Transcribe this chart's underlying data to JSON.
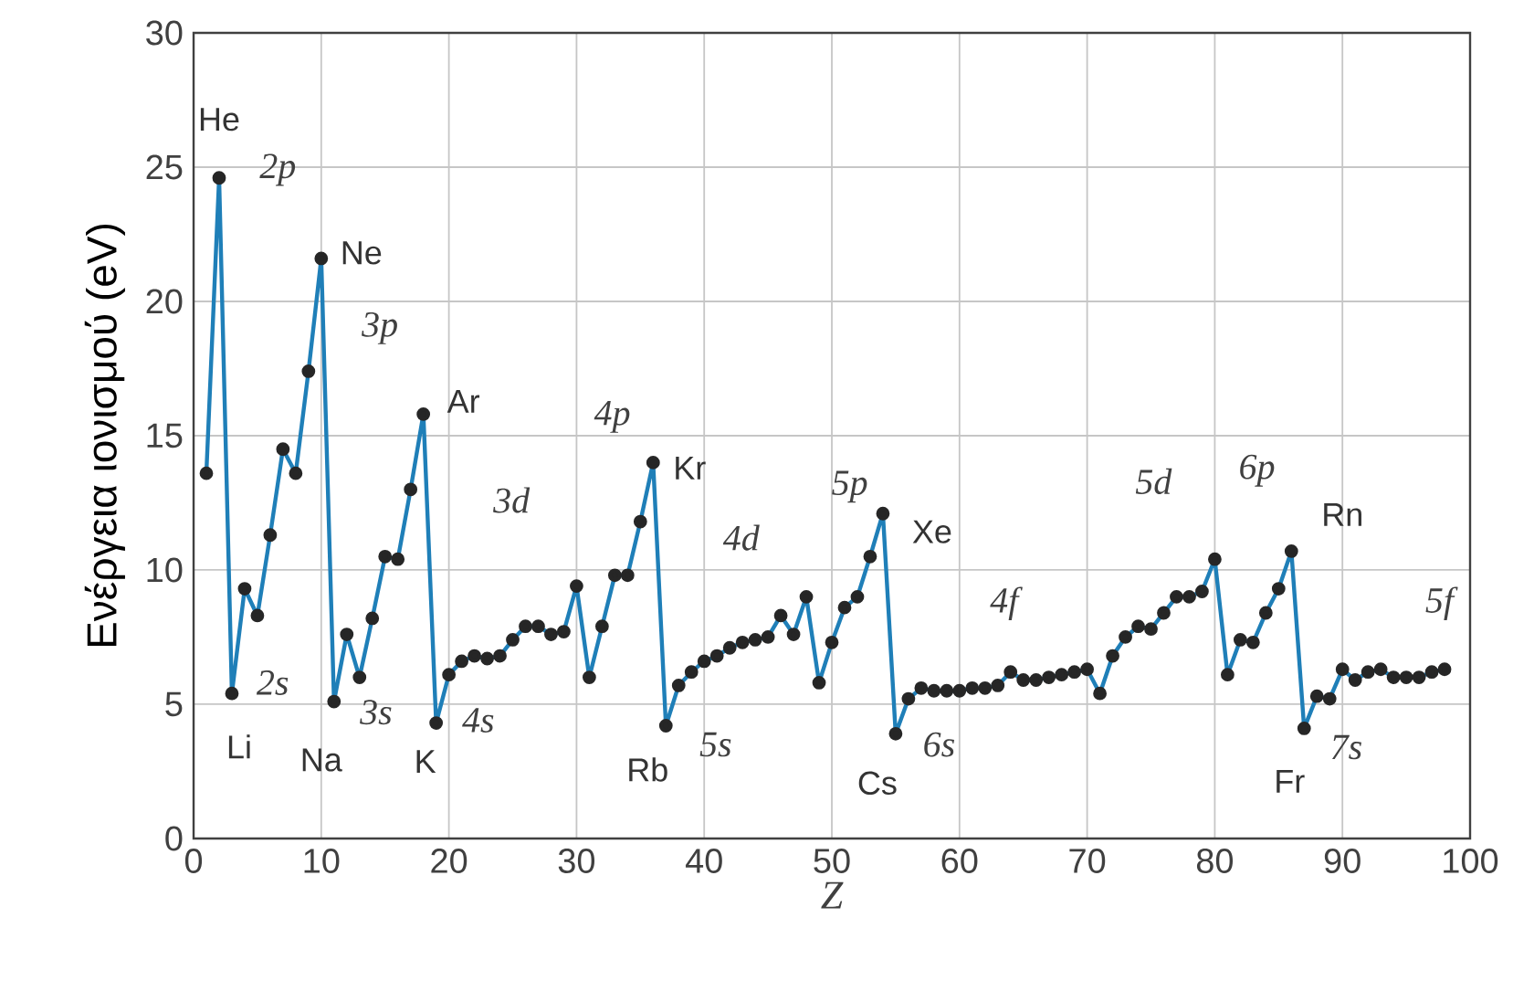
{
  "chart_data": {
    "type": "line",
    "xlabel": "Z",
    "ylabel": "Ενέργεια ιονισμού (eV)",
    "xlim": [
      0,
      100
    ],
    "ylim": [
      0,
      30
    ],
    "xticks": [
      0,
      10,
      20,
      30,
      40,
      50,
      60,
      70,
      80,
      90,
      100
    ],
    "yticks": [
      0,
      5,
      10,
      15,
      20,
      25,
      30
    ],
    "grid": true,
    "marker": "circle",
    "line_style": "solid",
    "series": [
      {
        "color": "#1f7fb8",
        "x": [
          1,
          2,
          3,
          4,
          5,
          6,
          7,
          8,
          9,
          10,
          11,
          12,
          13,
          14,
          15,
          16,
          17,
          18,
          19,
          20,
          21,
          22,
          23,
          24,
          25,
          26,
          27,
          28,
          29,
          30,
          31,
          32,
          33,
          34,
          35,
          36,
          37,
          38,
          39,
          40,
          41,
          42,
          43,
          44,
          45,
          46,
          47,
          48,
          49,
          50,
          51,
          52,
          53,
          54,
          55,
          56,
          57,
          58,
          59,
          60,
          61,
          62,
          63,
          64,
          65,
          66,
          67,
          68,
          69,
          70,
          71,
          72,
          73,
          74,
          75,
          76,
          77,
          78,
          79,
          80,
          81,
          82,
          83,
          84,
          85,
          86,
          87,
          88,
          89,
          90,
          91,
          92,
          93,
          94,
          95,
          96,
          97,
          98
        ],
        "values": [
          13.6,
          24.6,
          5.4,
          9.3,
          8.3,
          11.3,
          14.5,
          13.6,
          17.4,
          21.6,
          5.1,
          7.6,
          6.0,
          8.2,
          10.5,
          10.4,
          13.0,
          15.8,
          4.3,
          6.1,
          6.6,
          6.8,
          6.7,
          6.8,
          7.4,
          7.9,
          7.9,
          7.6,
          7.7,
          9.4,
          6.0,
          7.9,
          9.8,
          9.8,
          11.8,
          14.0,
          4.2,
          5.7,
          6.2,
          6.6,
          6.8,
          7.1,
          7.3,
          7.4,
          7.5,
          8.3,
          7.6,
          9.0,
          5.8,
          7.3,
          8.6,
          9.0,
          10.5,
          12.1,
          3.9,
          5.2,
          5.6,
          5.5,
          5.5,
          5.5,
          5.6,
          5.6,
          5.7,
          6.2,
          5.9,
          5.9,
          6.0,
          6.1,
          6.2,
          6.3,
          5.4,
          6.8,
          7.5,
          7.9,
          7.8,
          8.4,
          9.0,
          9.0,
          9.2,
          10.4,
          6.1,
          7.4,
          7.3,
          8.4,
          9.3,
          10.7,
          4.1,
          5.3,
          5.2,
          6.3,
          5.9,
          6.2,
          6.3,
          6.0,
          6.0,
          6.0,
          6.2,
          6.3
        ]
      }
    ],
    "annotations": [
      {
        "text": "He",
        "x": 2,
        "y": 24.6
      },
      {
        "text": "Ne",
        "x": 10,
        "y": 21.6
      },
      {
        "text": "Ar",
        "x": 18,
        "y": 15.8
      },
      {
        "text": "Kr",
        "x": 36,
        "y": 14.0
      },
      {
        "text": "Xe",
        "x": 54,
        "y": 12.1
      },
      {
        "text": "Rn",
        "x": 86,
        "y": 10.7
      },
      {
        "text": "Li",
        "x": 3,
        "y": 5.4
      },
      {
        "text": "Na",
        "x": 11,
        "y": 5.1
      },
      {
        "text": "K",
        "x": 19,
        "y": 4.3
      },
      {
        "text": "Rb",
        "x": 37,
        "y": 4.2
      },
      {
        "text": "Cs",
        "x": 55,
        "y": 3.9
      },
      {
        "text": "Fr",
        "x": 87,
        "y": 4.1
      },
      "2p",
      "3p",
      "3d",
      "4p",
      "4d",
      "5p",
      "4f",
      "5d",
      "6p",
      "5f",
      "2s",
      "3s",
      "4s",
      "5s",
      "6s",
      "7s"
    ]
  }
}
